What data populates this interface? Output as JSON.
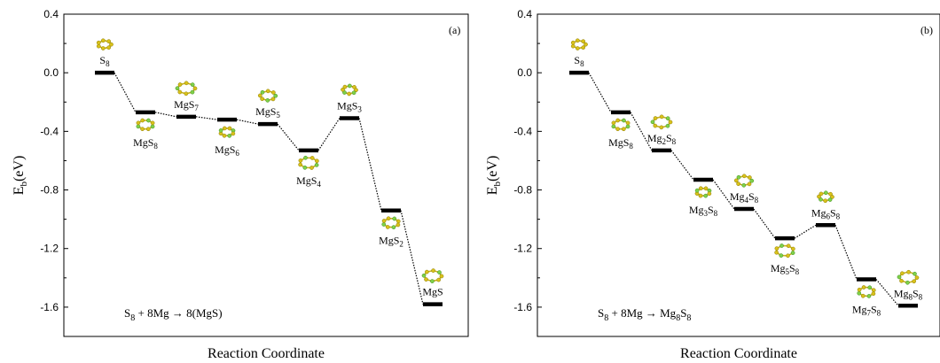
{
  "chart_data": [
    {
      "type": "line",
      "panel_label": "(a)",
      "xlabel": "Reaction Coordinate",
      "ylabel_main": "E",
      "ylabel_sub": "b",
      "ylabel_unit": "(eV)",
      "ylim": [
        -1.8,
        0.4
      ],
      "yticks": [
        "0.4",
        "0.0",
        "-0.4",
        "-0.8",
        "-1.2",
        "-1.6"
      ],
      "ytick_values": [
        0.4,
        0.0,
        -0.4,
        -0.8,
        -1.2,
        -1.6
      ],
      "equation": {
        "lhs_a": "S",
        "lhs_a_sub": "8",
        "lhs_b": " + 8Mg → 8(MgS)"
      },
      "levels": [
        {
          "label": "S",
          "sub": "8",
          "value": 0.0,
          "label_pos": "above"
        },
        {
          "label": "MgS",
          "sub": "8",
          "value": -0.27,
          "label_pos": "below"
        },
        {
          "label": "MgS",
          "sub": "7",
          "value": -0.3,
          "label_pos": "above"
        },
        {
          "label": "MgS",
          "sub": "6",
          "value": -0.32,
          "label_pos": "below"
        },
        {
          "label": "MgS",
          "sub": "5",
          "value": -0.35,
          "label_pos": "above"
        },
        {
          "label": "MgS",
          "sub": "4",
          "value": -0.53,
          "label_pos": "below"
        },
        {
          "label": "MgS",
          "sub": "3",
          "value": -0.31,
          "label_pos": "above"
        },
        {
          "label": "MgS",
          "sub": "2",
          "value": -0.94,
          "label_pos": "below"
        },
        {
          "label": "MgS",
          "sub": "",
          "value": -1.58,
          "label_pos": "above"
        }
      ]
    },
    {
      "type": "line",
      "panel_label": "(b)",
      "xlabel": "Reaction Coordinate",
      "ylabel_main": "E",
      "ylabel_sub": "b",
      "ylabel_unit": "(eV)",
      "ylim": [
        -1.8,
        0.4
      ],
      "yticks": [
        "0.4",
        "0.0",
        "-0.4",
        "-0.8",
        "-1.2",
        "-1.6"
      ],
      "ytick_values": [
        0.4,
        0.0,
        -0.4,
        -0.8,
        -1.2,
        -1.6
      ],
      "equation": {
        "lhs_a": "S",
        "lhs_a_sub": "8",
        "lhs_b": " + 8Mg → Mg",
        "rhs_sub1": "8",
        "rhs_b": "S",
        "rhs_sub2": "8"
      },
      "levels": [
        {
          "label": "S",
          "sub": "8",
          "label2": "",
          "sub2": "",
          "value": 0.0,
          "label_pos": "above"
        },
        {
          "label": "MgS",
          "sub": "8",
          "label2": "",
          "sub2": "",
          "value": -0.27,
          "label_pos": "below"
        },
        {
          "label": "Mg",
          "sub": "2",
          "label2": "S",
          "sub2": "8",
          "value": -0.53,
          "label_pos": "above"
        },
        {
          "label": "Mg",
          "sub": "3",
          "label2": "S",
          "sub2": "8",
          "value": -0.73,
          "label_pos": "below"
        },
        {
          "label": "Mg",
          "sub": "4",
          "label2": "S",
          "sub2": "8",
          "value": -0.93,
          "label_pos": "above"
        },
        {
          "label": "Mg",
          "sub": "5",
          "label2": "S",
          "sub2": "8",
          "value": -1.13,
          "label_pos": "below"
        },
        {
          "label": "Mg",
          "sub": "6",
          "label2": "S",
          "sub2": "8",
          "value": -1.04,
          "label_pos": "above"
        },
        {
          "label": "Mg",
          "sub": "7",
          "label2": "S",
          "sub2": "8",
          "value": -1.41,
          "label_pos": "below"
        },
        {
          "label": "Mg",
          "sub": "8",
          "label2": "S",
          "sub2": "8",
          "value": -1.59,
          "label_pos": "above"
        }
      ]
    }
  ]
}
